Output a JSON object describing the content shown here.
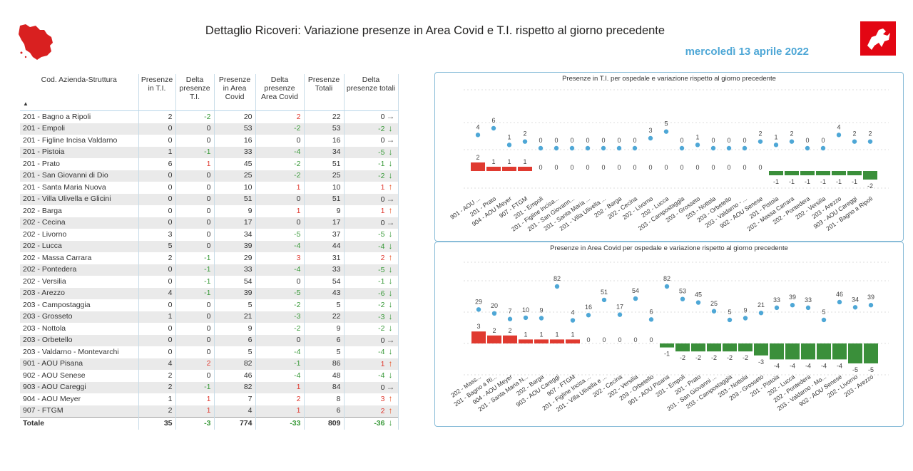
{
  "header": {
    "title": "Dettaglio Ricoveri: Variazione presenze in Area Covid e T.I. rispetto al giorno precedente",
    "date": "mercoledì 13 aprile 2022"
  },
  "colors": {
    "accent": "#4ea7d6",
    "positive_delta": "#e03a30",
    "negative_delta": "#3a9a3a",
    "dot": "#4ea7d6",
    "bar_up": "#e03a30",
    "bar_down": "#3a8f3a"
  },
  "table": {
    "headers": [
      "Cod. Azienda-Struttura",
      "Presenze in T.I.",
      "Delta presenze T.I.",
      "Presenze in Area Covid",
      "Delta presenze Area Covid",
      "Presenze Totali",
      "Delta presenze totali"
    ],
    "rows": [
      {
        "name": "201 - Bagno a Ripoli",
        "ti": "2",
        "dti": "-2",
        "ac": "20",
        "dac": "2",
        "tot": "22",
        "dtot": "0",
        "trend": "flat"
      },
      {
        "name": "201 - Empoli",
        "ti": "0",
        "dti": "0",
        "ac": "53",
        "dac": "-2",
        "tot": "53",
        "dtot": "-2",
        "trend": "down"
      },
      {
        "name": "201 - Figline Incisa Valdarno",
        "ti": "0",
        "dti": "0",
        "ac": "16",
        "dac": "0",
        "tot": "16",
        "dtot": "0",
        "trend": "flat"
      },
      {
        "name": "201 - Pistoia",
        "ti": "1",
        "dti": "-1",
        "ac": "33",
        "dac": "-4",
        "tot": "34",
        "dtot": "-5",
        "trend": "down"
      },
      {
        "name": "201 - Prato",
        "ti": "6",
        "dti": "1",
        "ac": "45",
        "dac": "-2",
        "tot": "51",
        "dtot": "-1",
        "trend": "down"
      },
      {
        "name": "201 - San Giovanni di Dio",
        "ti": "0",
        "dti": "0",
        "ac": "25",
        "dac": "-2",
        "tot": "25",
        "dtot": "-2",
        "trend": "down"
      },
      {
        "name": "201 - Santa Maria Nuova",
        "ti": "0",
        "dti": "0",
        "ac": "10",
        "dac": "1",
        "tot": "10",
        "dtot": "1",
        "trend": "up"
      },
      {
        "name": "201 - Villa Ulivella e Glicini",
        "ti": "0",
        "dti": "0",
        "ac": "51",
        "dac": "0",
        "tot": "51",
        "dtot": "0",
        "trend": "flat"
      },
      {
        "name": "202 - Barga",
        "ti": "0",
        "dti": "0",
        "ac": "9",
        "dac": "1",
        "tot": "9",
        "dtot": "1",
        "trend": "up"
      },
      {
        "name": "202 - Cecina",
        "ti": "0",
        "dti": "0",
        "ac": "17",
        "dac": "0",
        "tot": "17",
        "dtot": "0",
        "trend": "flat"
      },
      {
        "name": "202 - Livorno",
        "ti": "3",
        "dti": "0",
        "ac": "34",
        "dac": "-5",
        "tot": "37",
        "dtot": "-5",
        "trend": "down"
      },
      {
        "name": "202 - Lucca",
        "ti": "5",
        "dti": "0",
        "ac": "39",
        "dac": "-4",
        "tot": "44",
        "dtot": "-4",
        "trend": "down"
      },
      {
        "name": "202 - Massa Carrara",
        "ti": "2",
        "dti": "-1",
        "ac": "29",
        "dac": "3",
        "tot": "31",
        "dtot": "2",
        "trend": "up"
      },
      {
        "name": "202 - Pontedera",
        "ti": "0",
        "dti": "-1",
        "ac": "33",
        "dac": "-4",
        "tot": "33",
        "dtot": "-5",
        "trend": "down"
      },
      {
        "name": "202 - Versilia",
        "ti": "0",
        "dti": "-1",
        "ac": "54",
        "dac": "0",
        "tot": "54",
        "dtot": "-1",
        "trend": "down"
      },
      {
        "name": "203 - Arezzo",
        "ti": "4",
        "dti": "-1",
        "ac": "39",
        "dac": "-5",
        "tot": "43",
        "dtot": "-6",
        "trend": "down"
      },
      {
        "name": "203 - Campostaggia",
        "ti": "0",
        "dti": "0",
        "ac": "5",
        "dac": "-2",
        "tot": "5",
        "dtot": "-2",
        "trend": "down"
      },
      {
        "name": "203 - Grosseto",
        "ti": "1",
        "dti": "0",
        "ac": "21",
        "dac": "-3",
        "tot": "22",
        "dtot": "-3",
        "trend": "down"
      },
      {
        "name": "203 - Nottola",
        "ti": "0",
        "dti": "0",
        "ac": "9",
        "dac": "-2",
        "tot": "9",
        "dtot": "-2",
        "trend": "down"
      },
      {
        "name": "203 - Orbetello",
        "ti": "0",
        "dti": "0",
        "ac": "6",
        "dac": "0",
        "tot": "6",
        "dtot": "0",
        "trend": "flat"
      },
      {
        "name": "203 - Valdarno - Montevarchi",
        "ti": "0",
        "dti": "0",
        "ac": "5",
        "dac": "-4",
        "tot": "5",
        "dtot": "-4",
        "trend": "down"
      },
      {
        "name": "901 - AOU Pisana",
        "ti": "4",
        "dti": "2",
        "ac": "82",
        "dac": "-1",
        "tot": "86",
        "dtot": "1",
        "trend": "up"
      },
      {
        "name": "902 - AOU Senese",
        "ti": "2",
        "dti": "0",
        "ac": "46",
        "dac": "-4",
        "tot": "48",
        "dtot": "-4",
        "trend": "down"
      },
      {
        "name": "903 - AOU Careggi",
        "ti": "2",
        "dti": "-1",
        "ac": "82",
        "dac": "1",
        "tot": "84",
        "dtot": "0",
        "trend": "flat"
      },
      {
        "name": "904 - AOU Meyer",
        "ti": "1",
        "dti": "1",
        "ac": "7",
        "dac": "2",
        "tot": "8",
        "dtot": "3",
        "trend": "up"
      },
      {
        "name": "907 - FTGM",
        "ti": "2",
        "dti": "1",
        "ac": "4",
        "dac": "1",
        "tot": "6",
        "dtot": "2",
        "trend": "up"
      }
    ],
    "total": {
      "name": "Totale",
      "ti": "35",
      "dti": "-3",
      "ac": "774",
      "dac": "-33",
      "tot": "809",
      "dtot": "-36",
      "trend": "down"
    }
  },
  "chart_data": [
    {
      "type": "bar",
      "title": "Presenze in T.I. per ospedale e variazione rispetto al giorno precedente",
      "categories": [
        "901 - AOU ...",
        "201 - Prato",
        "904 - AOU Meyer",
        "907 - FTGM",
        "201 - Empoli",
        "201 - Figline Incisa...",
        "201 - San Giovann...",
        "201 - Santa Maria ...",
        "201 - Villa Ulivella ...",
        "202 - Barga",
        "202 - Cecina",
        "202 - Livorno",
        "202 - Lucca",
        "203 - Campostaggia",
        "203 - Grosseto",
        "203 - Nottola",
        "203 - Orbetello",
        "203 - Valdarno - ...",
        "902 - AOU Senese",
        "201 - Pistoia",
        "202 - Massa Carrara",
        "202 - Pontedera",
        "202 - Versilia",
        "203 - Arezzo",
        "903 - AOU Careggi",
        "201 - Bagno a Ripoli"
      ],
      "series": [
        {
          "name": "Presenze",
          "values": [
            4,
            6,
            1,
            2,
            0,
            0,
            0,
            0,
            0,
            0,
            0,
            3,
            5,
            0,
            1,
            0,
            0,
            0,
            2,
            1,
            2,
            0,
            0,
            4,
            2,
            2
          ]
        },
        {
          "name": "Delta",
          "values": [
            2,
            1,
            1,
            1,
            0,
            0,
            0,
            0,
            0,
            0,
            0,
            0,
            0,
            0,
            0,
            0,
            0,
            0,
            0,
            -1,
            -1,
            -1,
            -1,
            -1,
            -1,
            -2
          ]
        }
      ]
    },
    {
      "type": "bar",
      "title": "Presenze in Area Covid per ospedale e variazione rispetto al giorno precedente",
      "categories": [
        "202 - Mass...",
        "201 - Bagno a Ri...",
        "904 - AOU Meyer",
        "201 - Santa Maria N...",
        "202 - Barga",
        "903 - AOU Careggi",
        "907 - FTGM",
        "201 - Figline Incisa ...",
        "201 - Villa Ulivella e ...",
        "202 - Cecina",
        "202 - Versilia",
        "203 - Orbetello",
        "901 - AOU Pisana",
        "201 - Empoli",
        "201 - Prato",
        "201 - San Giovanni ...",
        "203 - Campostaggia",
        "203 - Nottola",
        "203 - Grosseto",
        "201 - Pistoia",
        "202 - Lucca",
        "202 - Pontedera",
        "203 - Valdarno - Mo...",
        "902 - AOU Senese",
        "202 - Livorno",
        "203 - Arezzo"
      ],
      "series": [
        {
          "name": "Presenze",
          "values": [
            29,
            20,
            7,
            10,
            9,
            82,
            4,
            16,
            51,
            17,
            54,
            6,
            82,
            53,
            45,
            25,
            5,
            9,
            21,
            33,
            39,
            33,
            5,
            46,
            34,
            39
          ]
        },
        {
          "name": "Delta",
          "values": [
            3,
            2,
            2,
            1,
            1,
            1,
            1,
            0,
            0,
            0,
            0,
            0,
            -1,
            -2,
            -2,
            -2,
            -2,
            -2,
            -3,
            -4,
            -4,
            -4,
            -4,
            -4,
            -5,
            -5
          ]
        }
      ]
    }
  ]
}
